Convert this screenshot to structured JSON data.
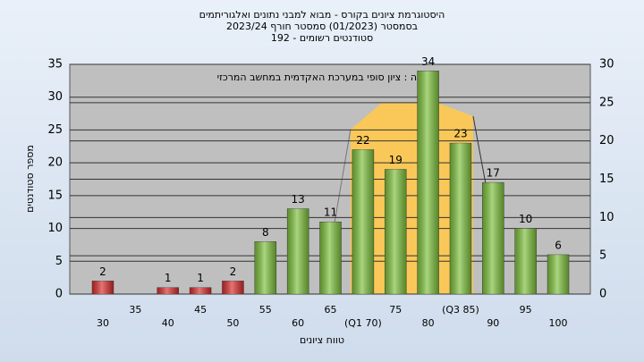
{
  "chart_data": {
    "type": "bar",
    "title": "היסטוגרמת ציונים בקורס - מבוא למבני נתונים ואלגוריתמים",
    "subtitle": "בסמסטר  (01/2023)  סמסטר חורף  2023/24",
    "subtitle2": "סטודנטים רשומים - 192",
    "annotation": "רשימה : ציון סופי במערכת האקדמית במחשב המרכזי",
    "y_label": "מספר סטודנטים",
    "x_label": "טווח ציונים",
    "categories": [
      "30",
      "35",
      "40",
      "45",
      "50",
      "55",
      "60",
      "65",
      "(Q1 70)",
      "75",
      "80",
      "(Q3 85)",
      "90",
      "95",
      "100"
    ],
    "values": [
      2,
      null,
      1,
      1,
      2,
      8,
      13,
      11,
      22,
      19,
      34,
      23,
      17,
      10,
      6
    ],
    "colors": [
      "#d82a2a",
      null,
      "#d82a2a",
      "#d82a2a",
      "#d82a2a",
      "#7cbf3a",
      "#7cbf3a",
      "#7cbf3a",
      "#7cbf3a",
      "#7cbf3a",
      "#7cbf3a",
      "#7cbf3a",
      "#7cbf3a",
      "#7cbf3a",
      "#7cbf3a"
    ],
    "ylim": [
      0,
      35
    ],
    "yticks": [
      0,
      5,
      10,
      15,
      20,
      25,
      30,
      35
    ],
    "y2lim": [
      0,
      30
    ],
    "y2ticks": [
      0,
      5,
      10,
      15,
      20,
      25,
      30
    ],
    "grid": true
  }
}
